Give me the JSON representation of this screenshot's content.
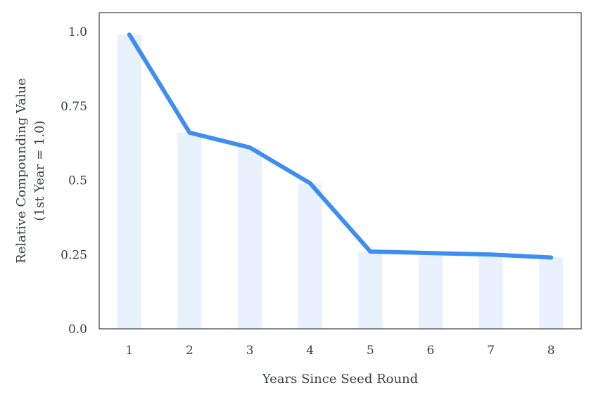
{
  "chart_data": {
    "type": "line",
    "xlabel": "Years Since Seed Round",
    "ylabel_line1": "Relative Compounding  Value",
    "ylabel_line2": "(1st Year = 1.0)",
    "x": [
      1,
      2,
      3,
      4,
      5,
      6,
      7,
      8
    ],
    "x_tick_labels": [
      "1",
      "2",
      "3",
      "4",
      "5",
      "6",
      "7",
      "8"
    ],
    "y_ticks": [
      0.0,
      0.25,
      0.5,
      0.75,
      1.0
    ],
    "y_tick_labels": [
      "0.0",
      "0.25",
      "0.5",
      "0.75",
      "1.0"
    ],
    "series": [
      {
        "values": [
          0.99,
          0.66,
          0.61,
          0.49,
          0.26,
          0.255,
          0.25,
          0.24
        ]
      }
    ],
    "ylim": [
      0.0,
      1.0
    ],
    "xlim": [
      0.5,
      8.5
    ],
    "grid": false,
    "bars_under_line": true,
    "colors": {
      "line": "#3d8ef0",
      "bar": "#e9f1fd",
      "frame": "#3a3f4a",
      "text": "#3a3f4a"
    }
  }
}
